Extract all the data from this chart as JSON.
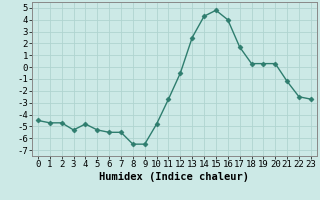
{
  "x": [
    0,
    1,
    2,
    3,
    4,
    5,
    6,
    7,
    8,
    9,
    10,
    11,
    12,
    13,
    14,
    15,
    16,
    17,
    18,
    19,
    20,
    21,
    22,
    23
  ],
  "y": [
    -4.5,
    -4.7,
    -4.7,
    -5.3,
    -4.8,
    -5.3,
    -5.5,
    -5.5,
    -6.5,
    -6.5,
    -4.8,
    -2.7,
    -0.5,
    2.5,
    4.3,
    4.8,
    4.0,
    1.7,
    0.3,
    0.3,
    0.3,
    -1.2,
    -2.5,
    -2.7
  ],
  "line_color": "#2e7d6e",
  "marker": "D",
  "marker_size": 2.5,
  "background_color": "#cce9e6",
  "grid_color": "#b0d4d0",
  "xlabel": "Humidex (Indice chaleur)",
  "xlim": [
    -0.5,
    23.5
  ],
  "ylim": [
    -7.5,
    5.5
  ],
  "yticks": [
    -7,
    -6,
    -5,
    -4,
    -3,
    -2,
    -1,
    0,
    1,
    2,
    3,
    4,
    5
  ],
  "xticks": [
    0,
    1,
    2,
    3,
    4,
    5,
    6,
    7,
    8,
    9,
    10,
    11,
    12,
    13,
    14,
    15,
    16,
    17,
    18,
    19,
    20,
    21,
    22,
    23
  ],
  "xlabel_fontsize": 7.5,
  "tick_fontsize": 6.5
}
